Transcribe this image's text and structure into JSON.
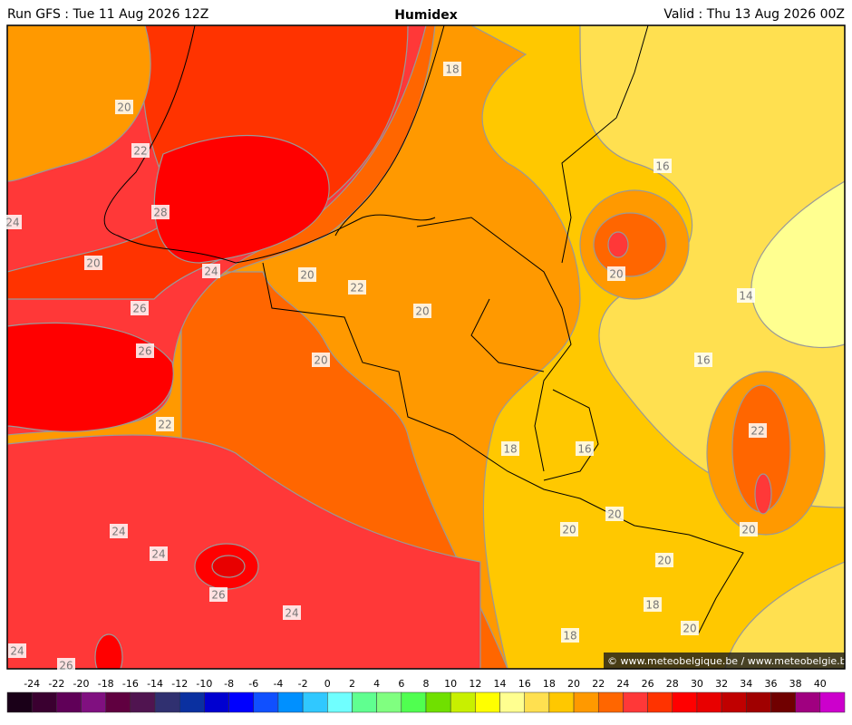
{
  "header": {
    "left": "Run GFS : Tue 11 Aug 2026 12Z",
    "title": "Humidex",
    "right": "Valid : Thu 13 Aug 2026 00Z"
  },
  "map": {
    "contour_labels": [
      18,
      20,
      22,
      16,
      28,
      24,
      20,
      20,
      24,
      20,
      22,
      14,
      26,
      20,
      26,
      20,
      16,
      22,
      22,
      18,
      16,
      20,
      20,
      20,
      24,
      24,
      20,
      26,
      18,
      24,
      20,
      18,
      24,
      26
    ],
    "credit": "© www.meteobelgique.be / www.meteobelgie.be"
  },
  "colorbar": {
    "ticks": [
      -24,
      -22,
      -20,
      -18,
      -16,
      -14,
      -12,
      -10,
      -8,
      -6,
      -4,
      -2,
      0,
      2,
      4,
      6,
      8,
      10,
      12,
      14,
      16,
      18,
      20,
      22,
      24,
      26,
      28,
      30,
      32,
      34,
      36,
      38,
      40
    ],
    "colors": [
      "#1a0018",
      "#3a0030",
      "#600058",
      "#801080",
      "#600040",
      "#501450",
      "#303070",
      "#0a30a0",
      "#0000d0",
      "#0000ff",
      "#1050ff",
      "#0090ff",
      "#30c8ff",
      "#70ffff",
      "#60ff90",
      "#80ff80",
      "#50ff50",
      "#70e000",
      "#c8f000",
      "#ffff00",
      "#ffff90",
      "#ffe050",
      "#ffc800",
      "#ff9900",
      "#ff6600",
      "#ff3838",
      "#ff3300",
      "#ff0000",
      "#e80000",
      "#c00000",
      "#a00000",
      "#700000",
      "#a00080",
      "#cc00cc"
    ]
  }
}
